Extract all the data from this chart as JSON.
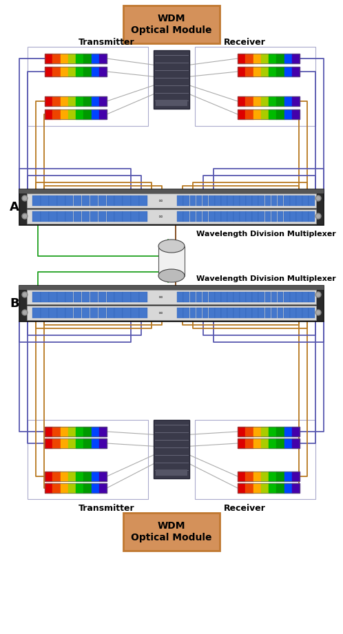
{
  "bg_color": "#ffffff",
  "wdm_box_color": "#d4915a",
  "wdm_label": "WDM\nOptical Module",
  "transmitter_label": "Transmitter",
  "receiver_label": "Receiver",
  "wdm_multiplexer_label": "Wavelength Division Multiplexer",
  "wire_blue": "#5858b0",
  "wire_orange": "#b87820",
  "wire_green": "#20a020",
  "wire_brown": "#7a4010",
  "label_fontsize": 9,
  "multiplexer_fontsize": 8,
  "A_label": "A",
  "B_label": "B"
}
